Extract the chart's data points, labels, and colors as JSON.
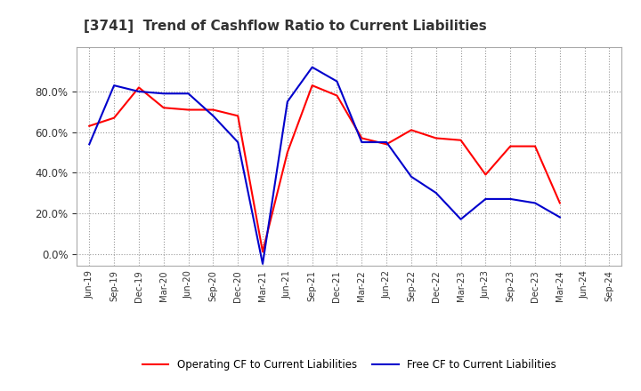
{
  "title": "[3741]  Trend of Cashflow Ratio to Current Liabilities",
  "x_labels": [
    "Jun-19",
    "Sep-19",
    "Dec-19",
    "Mar-20",
    "Jun-20",
    "Sep-20",
    "Dec-20",
    "Mar-21",
    "Jun-21",
    "Sep-21",
    "Dec-21",
    "Mar-22",
    "Jun-22",
    "Sep-22",
    "Dec-22",
    "Mar-23",
    "Jun-23",
    "Sep-23",
    "Dec-23",
    "Mar-24",
    "Jun-24",
    "Sep-24"
  ],
  "operating_cf": [
    0.63,
    0.67,
    0.82,
    0.72,
    0.71,
    0.71,
    0.68,
    0.01,
    0.5,
    0.83,
    0.78,
    0.57,
    0.54,
    0.61,
    0.57,
    0.56,
    0.39,
    0.53,
    0.53,
    0.25,
    null,
    null
  ],
  "free_cf": [
    0.54,
    0.83,
    0.8,
    0.79,
    0.79,
    0.68,
    0.55,
    -0.05,
    0.75,
    0.92,
    0.85,
    0.55,
    0.55,
    0.38,
    0.3,
    0.17,
    0.27,
    0.27,
    0.25,
    0.18,
    null,
    null
  ],
  "ylim": [
    -0.06,
    1.02
  ],
  "yticks": [
    0.0,
    0.2,
    0.4,
    0.6,
    0.8
  ],
  "operating_color": "#ff0000",
  "free_color": "#0000cc",
  "bg_color": "#ffffff",
  "grid_color": "#999999",
  "title_color": "#333333",
  "legend_labels": [
    "Operating CF to Current Liabilities",
    "Free CF to Current Liabilities"
  ]
}
